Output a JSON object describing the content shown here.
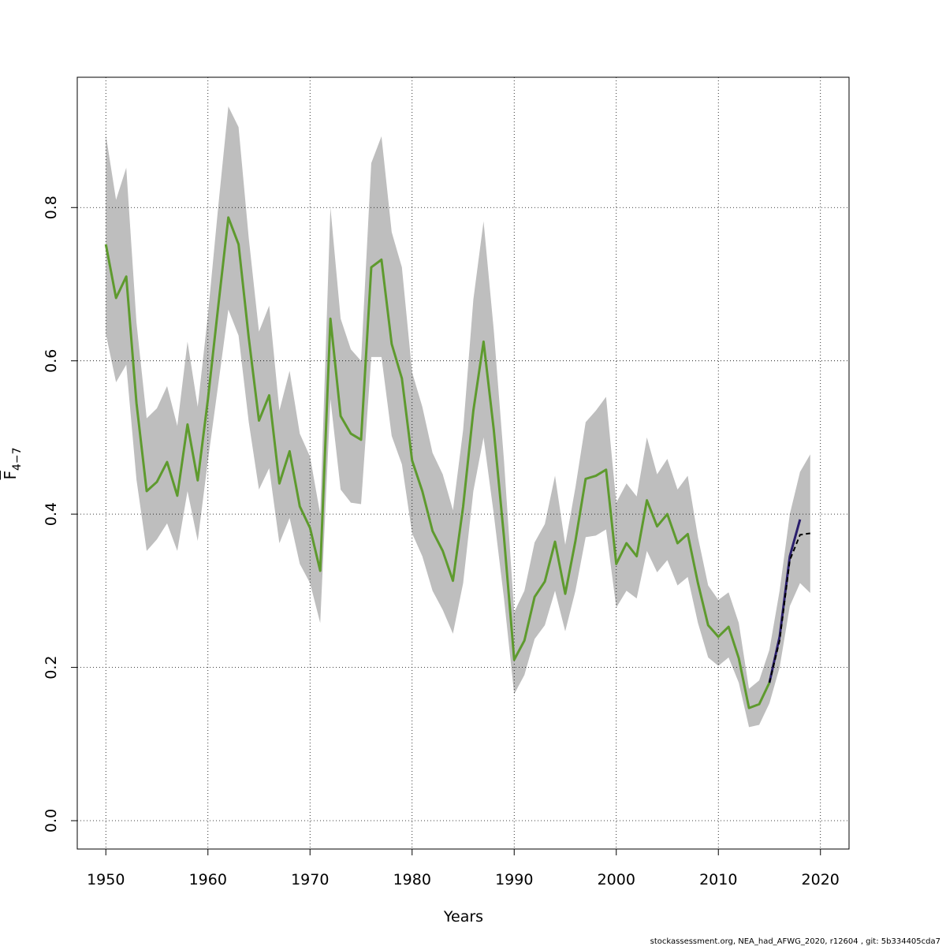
{
  "chart_data": {
    "type": "line",
    "xlabel": "Years",
    "ylabel": "F",
    "ylabel_sub": "4−7",
    "footer": "stockassessment.org, NEA_had_AFWG_2020, r12604 , git: 5b334405cda7",
    "xlim": [
      1947.2,
      2022.8
    ],
    "ylim": [
      -0.037,
      0.97
    ],
    "xticks": [
      1950,
      1960,
      1970,
      1980,
      1990,
      2000,
      2010,
      2020
    ],
    "yticks": [
      {
        "value": 0,
        "label": "0.0"
      },
      0.2,
      0.4,
      0.6,
      0.8
    ],
    "grid": true,
    "x": [
      1950,
      1951,
      1952,
      1953,
      1954,
      1955,
      1956,
      1957,
      1958,
      1959,
      1960,
      1961,
      1962,
      1963,
      1964,
      1965,
      1966,
      1967,
      1968,
      1969,
      1970,
      1971,
      1972,
      1973,
      1974,
      1975,
      1976,
      1977,
      1978,
      1979,
      1980,
      1981,
      1982,
      1983,
      1984,
      1985,
      1986,
      1987,
      1988,
      1989,
      1990,
      1991,
      1992,
      1993,
      1994,
      1995,
      1996,
      1997,
      1998,
      1999,
      2000,
      2001,
      2002,
      2003,
      2004,
      2005,
      2006,
      2007,
      2008,
      2009,
      2010,
      2011,
      2012,
      2013,
      2014,
      2015,
      2016,
      2017,
      2018,
      2019
    ],
    "band": {
      "color": "#bebebe",
      "upper": [
        0.895,
        0.81,
        0.852,
        0.65,
        0.525,
        0.538,
        0.567,
        0.515,
        0.625,
        0.54,
        0.66,
        0.8,
        0.932,
        0.905,
        0.76,
        0.638,
        0.672,
        0.535,
        0.587,
        0.505,
        0.475,
        0.4,
        0.8,
        0.655,
        0.615,
        0.6,
        0.858,
        0.893,
        0.768,
        0.722,
        0.585,
        0.54,
        0.48,
        0.452,
        0.405,
        0.51,
        0.68,
        0.782,
        0.64,
        0.47,
        0.272,
        0.3,
        0.363,
        0.387,
        0.45,
        0.36,
        0.435,
        0.52,
        0.535,
        0.553,
        0.415,
        0.44,
        0.423,
        0.5,
        0.452,
        0.472,
        0.432,
        0.45,
        0.37,
        0.307,
        0.288,
        0.298,
        0.258,
        0.172,
        0.183,
        0.223,
        0.3,
        0.4,
        0.455,
        0.478
      ],
      "lower": [
        0.635,
        0.572,
        0.595,
        0.445,
        0.352,
        0.367,
        0.388,
        0.352,
        0.43,
        0.365,
        0.47,
        0.568,
        0.667,
        0.633,
        0.52,
        0.432,
        0.46,
        0.362,
        0.395,
        0.335,
        0.31,
        0.258,
        0.55,
        0.432,
        0.415,
        0.413,
        0.605,
        0.605,
        0.502,
        0.465,
        0.375,
        0.345,
        0.3,
        0.275,
        0.244,
        0.31,
        0.43,
        0.5,
        0.4,
        0.29,
        0.165,
        0.19,
        0.237,
        0.255,
        0.3,
        0.247,
        0.3,
        0.37,
        0.372,
        0.38,
        0.278,
        0.3,
        0.29,
        0.352,
        0.324,
        0.34,
        0.307,
        0.318,
        0.258,
        0.213,
        0.202,
        0.213,
        0.18,
        0.122,
        0.125,
        0.153,
        0.2,
        0.28,
        0.31,
        0.297
      ]
    },
    "series": [
      {
        "color": "#2a1e6c",
        "dash": false,
        "values": [
          null,
          null,
          null,
          null,
          null,
          null,
          null,
          null,
          null,
          null,
          null,
          null,
          null,
          null,
          null,
          null,
          null,
          null,
          null,
          null,
          null,
          null,
          null,
          null,
          null,
          null,
          null,
          null,
          null,
          null,
          null,
          null,
          null,
          null,
          null,
          null,
          null,
          null,
          null,
          null,
          null,
          null,
          null,
          null,
          null,
          null,
          null,
          null,
          null,
          null,
          null,
          null,
          null,
          null,
          null,
          null,
          null,
          null,
          null,
          null,
          null,
          null,
          null,
          null,
          null,
          0.18,
          0.24,
          0.345,
          0.393,
          null
        ]
      },
      {
        "color": "#000000",
        "dash": true,
        "values": [
          null,
          null,
          null,
          null,
          null,
          null,
          null,
          null,
          null,
          null,
          null,
          null,
          null,
          null,
          null,
          null,
          null,
          null,
          null,
          null,
          null,
          null,
          null,
          null,
          null,
          null,
          null,
          null,
          null,
          null,
          null,
          null,
          null,
          null,
          null,
          null,
          null,
          null,
          null,
          null,
          null,
          null,
          null,
          null,
          null,
          null,
          null,
          null,
          null,
          null,
          null,
          null,
          null,
          null,
          null,
          null,
          null,
          null,
          null,
          null,
          null,
          null,
          null,
          null,
          null,
          0.18,
          0.235,
          0.34,
          0.373,
          0.375
        ]
      },
      {
        "color": "#5e9a2e",
        "dash": false,
        "values": [
          0.752,
          0.682,
          0.71,
          0.545,
          0.43,
          0.442,
          0.468,
          0.424,
          0.517,
          0.444,
          0.55,
          0.67,
          0.787,
          0.752,
          0.63,
          0.522,
          0.555,
          0.44,
          0.482,
          0.41,
          0.382,
          0.326,
          0.655,
          0.528,
          0.505,
          0.497,
          0.722,
          0.732,
          0.622,
          0.577,
          0.47,
          0.43,
          0.378,
          0.352,
          0.313,
          0.41,
          0.535,
          0.625,
          0.51,
          0.37,
          0.21,
          0.235,
          0.292,
          0.312,
          0.364,
          0.296,
          0.365,
          0.446,
          0.45,
          0.458,
          0.335,
          0.362,
          0.345,
          0.418,
          0.384,
          0.4,
          0.362,
          0.374,
          0.31,
          0.255,
          0.24,
          0.253,
          0.212,
          0.147,
          0.152,
          0.18,
          null,
          null,
          null,
          null
        ]
      }
    ]
  }
}
